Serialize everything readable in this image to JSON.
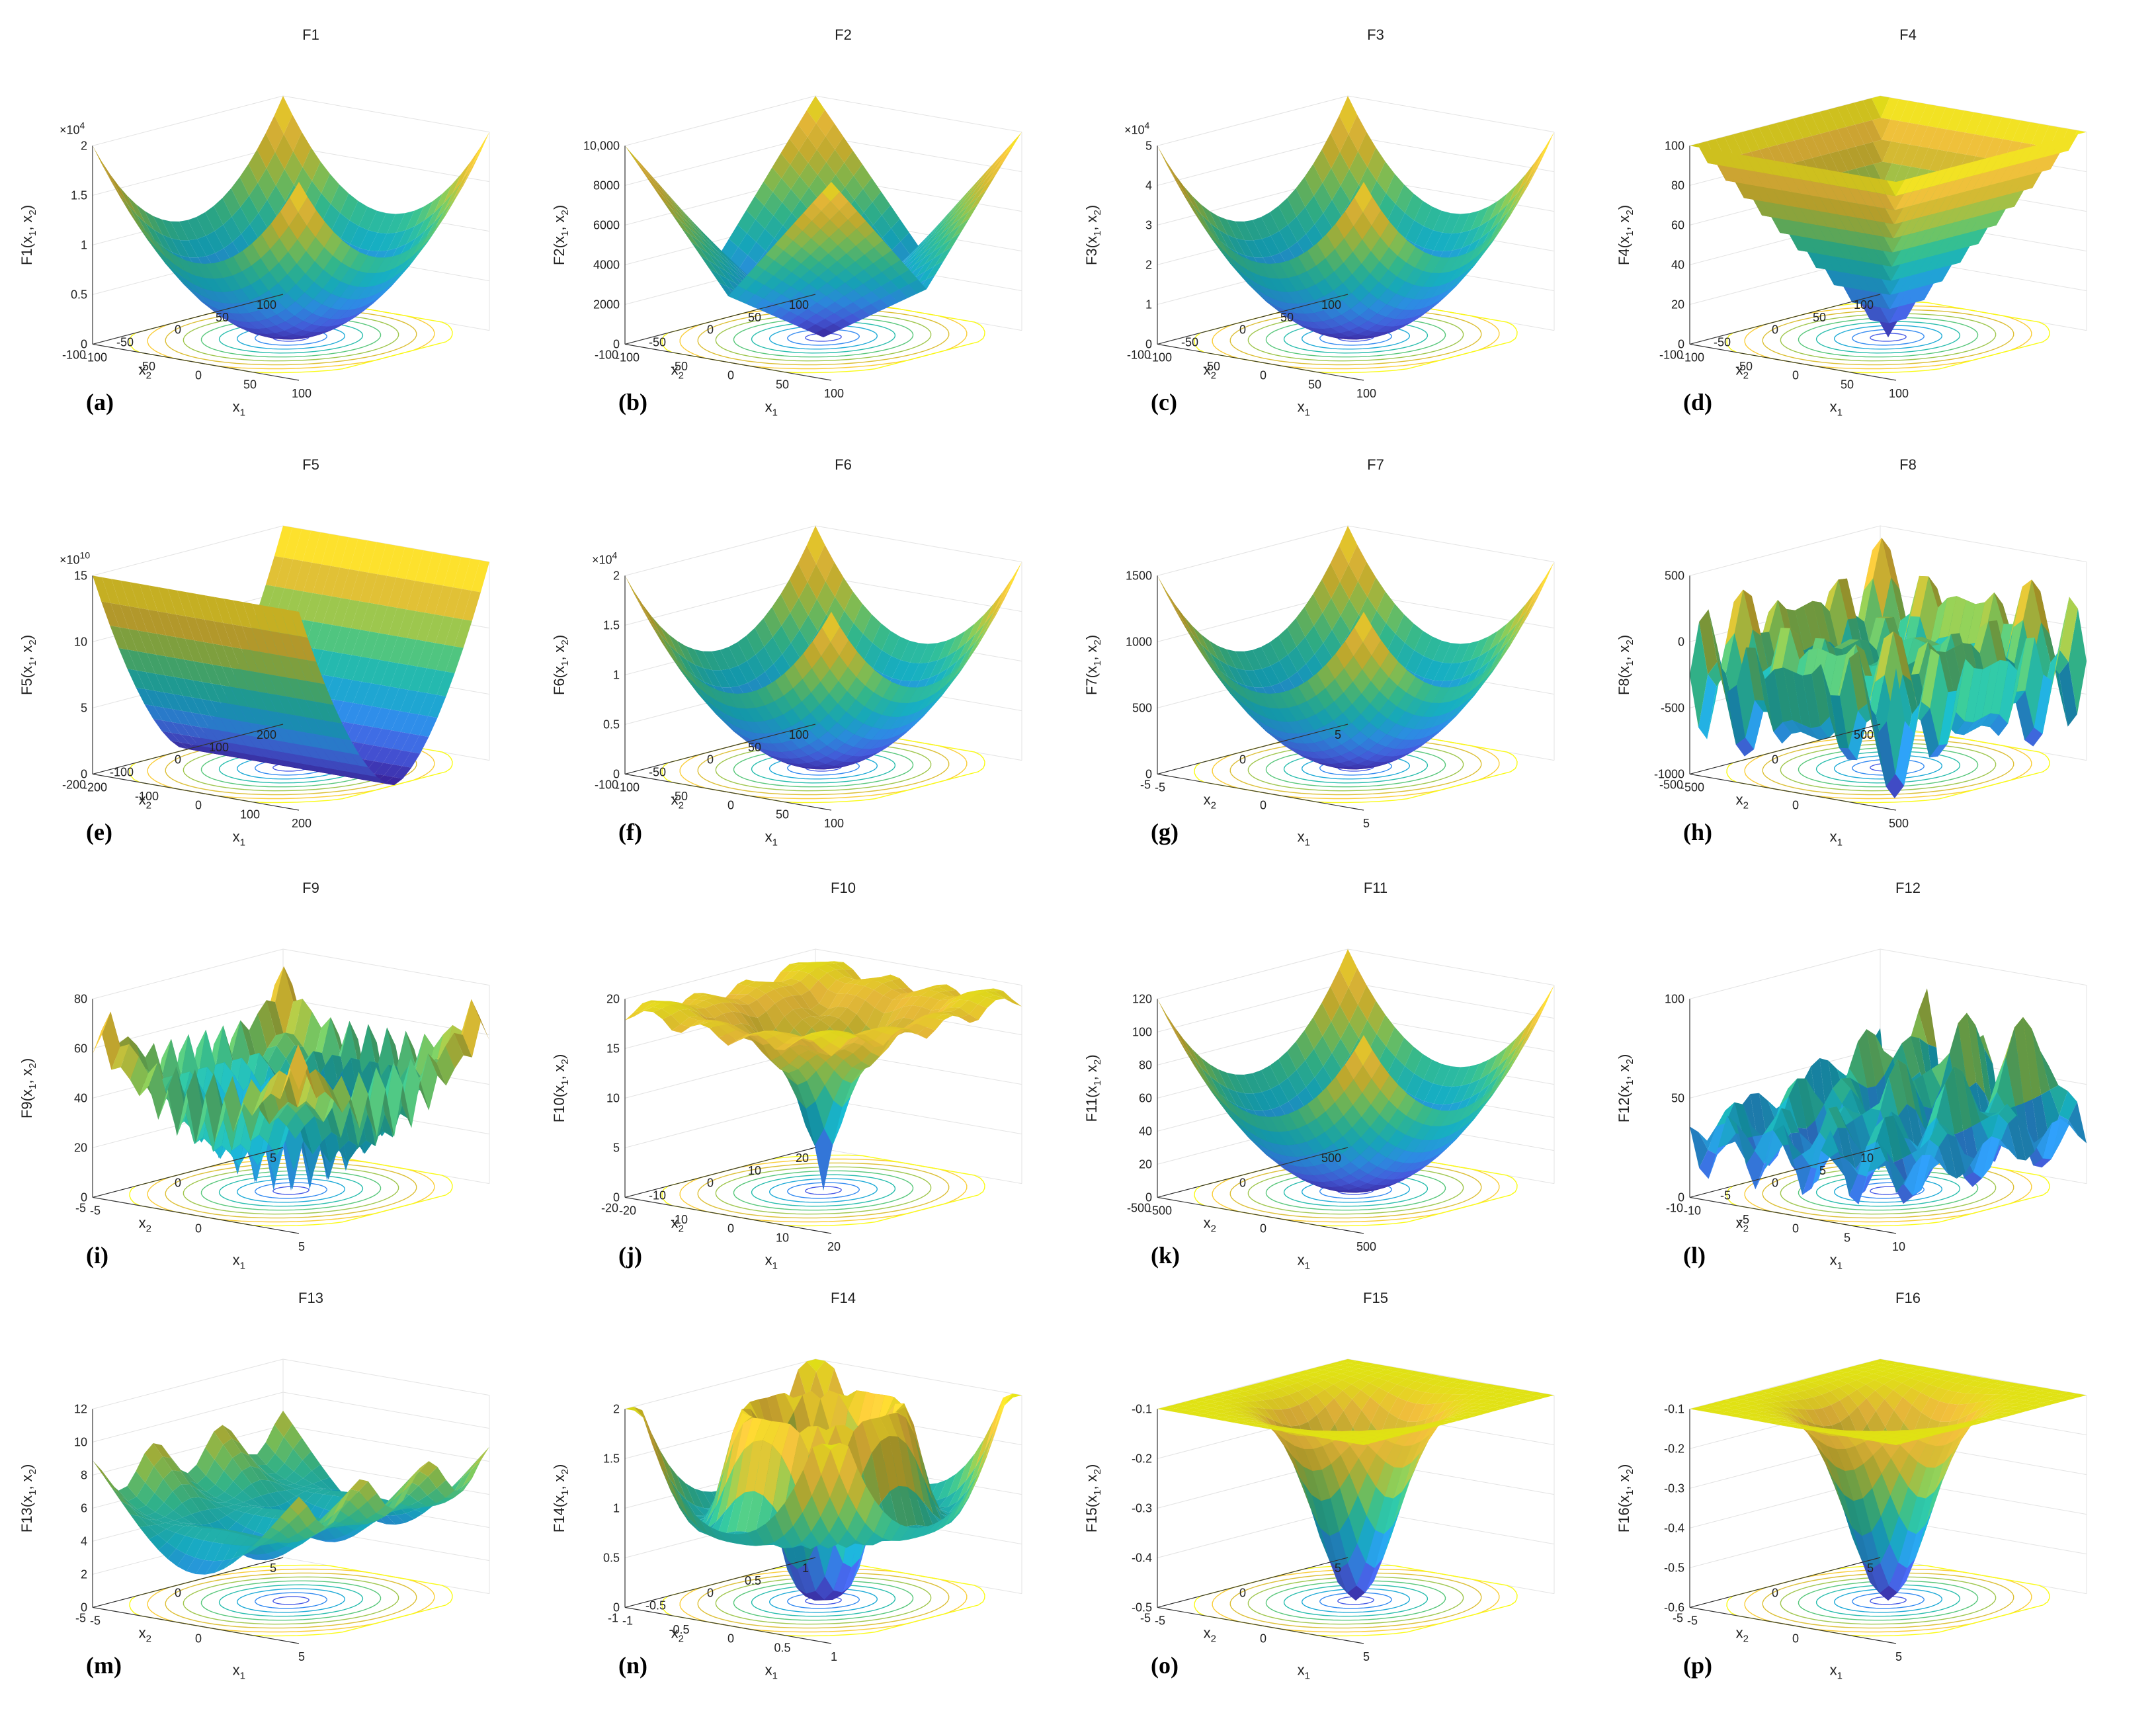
{
  "colormap": [
    "#3e26a8",
    "#4a63ee",
    "#2f97f2",
    "#18b5c9",
    "#36c496",
    "#85cb5a",
    "#d3bd32",
    "#fac73e",
    "#f9fb15"
  ],
  "chart_data": [
    {
      "id": "a",
      "label": "(a)",
      "title": "F1",
      "type": "surface",
      "shape": "bowl",
      "xlim": [
        -100,
        100
      ],
      "ylim": [
        -100,
        100
      ],
      "xticks": [
        "-100",
        "-50",
        "0",
        "50",
        "100"
      ],
      "yticks": [
        "-100",
        "-50",
        "0",
        "50",
        "100"
      ],
      "zticks": [
        "0",
        "0.5",
        "1",
        "1.5",
        "2"
      ],
      "zexp": "×10",
      "zexp_sup": "4",
      "zlabel": "F1(x",
      "zlabel_sub1": "1",
      "zlabel_mid": ", x",
      "zlabel_sub2": "2",
      "zlabel_end": ")",
      "xlabel": "x",
      "xlabel_sub": "1",
      "ylabel": "x",
      "ylabel_sub": "2"
    },
    {
      "id": "b",
      "label": "(b)",
      "title": "F2",
      "type": "surface",
      "shape": "abs",
      "xlim": [
        -100,
        100
      ],
      "ylim": [
        -100,
        100
      ],
      "xticks": [
        "-100",
        "-50",
        "0",
        "50",
        "100"
      ],
      "yticks": [
        "-100",
        "-50",
        "0",
        "50",
        "100"
      ],
      "zticks": [
        "0",
        "2000",
        "4000",
        "6000",
        "8000",
        "10,000"
      ],
      "zexp": "",
      "zexp_sup": "",
      "zlabel": "F2(x",
      "zlabel_sub1": "1",
      "zlabel_mid": ", x",
      "zlabel_sub2": "2",
      "zlabel_end": ")",
      "xlabel": "x",
      "xlabel_sub": "1",
      "ylabel": "x",
      "ylabel_sub": "2"
    },
    {
      "id": "c",
      "label": "(c)",
      "title": "F3",
      "type": "surface",
      "shape": "bowl",
      "xlim": [
        -100,
        100
      ],
      "ylim": [
        -100,
        100
      ],
      "xticks": [
        "-100",
        "-50",
        "0",
        "50",
        "100"
      ],
      "yticks": [
        "-100",
        "-50",
        "0",
        "50",
        "100"
      ],
      "zticks": [
        "0",
        "1",
        "2",
        "3",
        "4",
        "5"
      ],
      "zexp": "×10",
      "zexp_sup": "4",
      "zlabel": "F3(x",
      "zlabel_sub1": "1",
      "zlabel_mid": ", x",
      "zlabel_sub2": "2",
      "zlabel_end": ")",
      "xlabel": "x",
      "xlabel_sub": "1",
      "ylabel": "x",
      "ylabel_sub": "2"
    },
    {
      "id": "d",
      "label": "(d)",
      "title": "F4",
      "type": "surface",
      "shape": "inverted",
      "xlim": [
        -100,
        100
      ],
      "ylim": [
        -100,
        100
      ],
      "xticks": [
        "-100",
        "-50",
        "0",
        "50",
        "100"
      ],
      "yticks": [
        "-100",
        "-50",
        "0",
        "50",
        "100"
      ],
      "zticks": [
        "0",
        "20",
        "40",
        "60",
        "80",
        "100"
      ],
      "zexp": "",
      "zexp_sup": "",
      "zlabel": "F4(x",
      "zlabel_sub1": "1",
      "zlabel_mid": ", x",
      "zlabel_sub2": "2",
      "zlabel_end": ")",
      "xlabel": "x",
      "xlabel_sub": "1",
      "ylabel": "x",
      "ylabel_sub": "2"
    },
    {
      "id": "e",
      "label": "(e)",
      "title": "F5",
      "type": "surface",
      "shape": "valley",
      "xlim": [
        -200,
        200
      ],
      "ylim": [
        -200,
        200
      ],
      "xticks": [
        "-200",
        "-100",
        "0",
        "100",
        "200"
      ],
      "yticks": [
        "-200",
        "-100",
        "0",
        "100",
        "200"
      ],
      "zticks": [
        "0",
        "5",
        "10",
        "15"
      ],
      "zexp": "×10",
      "zexp_sup": "10",
      "zlabel": "F5(x",
      "zlabel_sub1": "1",
      "zlabel_mid": ", x",
      "zlabel_sub2": "2",
      "zlabel_end": ")",
      "xlabel": "x",
      "xlabel_sub": "1",
      "ylabel": "x",
      "ylabel_sub": "2"
    },
    {
      "id": "f",
      "label": "(f)",
      "title": "F6",
      "type": "surface",
      "shape": "bowl",
      "xlim": [
        -100,
        100
      ],
      "ylim": [
        -100,
        100
      ],
      "xticks": [
        "-100",
        "-50",
        "0",
        "50",
        "100"
      ],
      "yticks": [
        "-100",
        "-50",
        "0",
        "50",
        "100"
      ],
      "zticks": [
        "0",
        "0.5",
        "1",
        "1.5",
        "2"
      ],
      "zexp": "×10",
      "zexp_sup": "4",
      "zlabel": "F6(x",
      "zlabel_sub1": "1",
      "zlabel_mid": ", x",
      "zlabel_sub2": "2",
      "zlabel_end": ")",
      "xlabel": "x",
      "xlabel_sub": "1",
      "ylabel": "x",
      "ylabel_sub": "2"
    },
    {
      "id": "g",
      "label": "(g)",
      "title": "F7",
      "type": "surface",
      "shape": "bowl",
      "xlim": [
        -5,
        5
      ],
      "ylim": [
        -5,
        5
      ],
      "xticks": [
        "-5",
        "0",
        "5"
      ],
      "yticks": [
        "-5",
        "0",
        "5"
      ],
      "zticks": [
        "0",
        "500",
        "1000",
        "1500"
      ],
      "zexp": "",
      "zexp_sup": "",
      "zlabel": "F7(x",
      "zlabel_sub1": "1",
      "zlabel_mid": ", x",
      "zlabel_sub2": "2",
      "zlabel_end": ")",
      "xlabel": "x",
      "xlabel_sub": "1",
      "ylabel": "x",
      "ylabel_sub": "2"
    },
    {
      "id": "h",
      "label": "(h)",
      "title": "F8",
      "type": "surface",
      "shape": "schwefel",
      "xlim": [
        -500,
        500
      ],
      "ylim": [
        -500,
        500
      ],
      "xticks": [
        "-500",
        "0",
        "500"
      ],
      "yticks": [
        "-500",
        "0",
        "500"
      ],
      "zticks": [
        "-1000",
        "-500",
        "0",
        "500"
      ],
      "zexp": "",
      "zexp_sup": "",
      "zlabel": "F8(x",
      "zlabel_sub1": "1",
      "zlabel_mid": ", x",
      "zlabel_sub2": "2",
      "zlabel_end": ")",
      "xlabel": "x",
      "xlabel_sub": "1",
      "ylabel": "x",
      "ylabel_sub": "2"
    },
    {
      "id": "i",
      "label": "(i)",
      "title": "F9",
      "type": "surface",
      "shape": "rastrigin",
      "xlim": [
        -5,
        5
      ],
      "ylim": [
        -5,
        5
      ],
      "xticks": [
        "-5",
        "0",
        "5"
      ],
      "yticks": [
        "-5",
        "0",
        "5"
      ],
      "zticks": [
        "0",
        "20",
        "40",
        "60",
        "80"
      ],
      "zexp": "",
      "zexp_sup": "",
      "zlabel": "F9(x",
      "zlabel_sub1": "1",
      "zlabel_mid": ", x",
      "zlabel_sub2": "2",
      "zlabel_end": ")",
      "xlabel": "x",
      "xlabel_sub": "1",
      "ylabel": "x",
      "ylabel_sub": "2"
    },
    {
      "id": "j",
      "label": "(j)",
      "title": "F10",
      "type": "surface",
      "shape": "ackley",
      "xlim": [
        -20,
        20
      ],
      "ylim": [
        -20,
        20
      ],
      "xticks": [
        "-20",
        "-10",
        "0",
        "10",
        "20"
      ],
      "yticks": [
        "-20",
        "-10",
        "0",
        "10",
        "20"
      ],
      "zticks": [
        "0",
        "5",
        "10",
        "15",
        "20"
      ],
      "zexp": "",
      "zexp_sup": "",
      "zlabel": "F10(x",
      "zlabel_sub1": "1",
      "zlabel_mid": ", x",
      "zlabel_sub2": "2",
      "zlabel_end": ")",
      "xlabel": "x",
      "xlabel_sub": "1",
      "ylabel": "x",
      "ylabel_sub": "2"
    },
    {
      "id": "k",
      "label": "(k)",
      "title": "F11",
      "type": "surface",
      "shape": "bowl",
      "xlim": [
        -500,
        500
      ],
      "ylim": [
        -500,
        500
      ],
      "xticks": [
        "-500",
        "0",
        "500"
      ],
      "yticks": [
        "-500",
        "0",
        "500"
      ],
      "zticks": [
        "0",
        "20",
        "40",
        "60",
        "80",
        "100",
        "120"
      ],
      "zexp": "",
      "zexp_sup": "",
      "zlabel": "F11(x",
      "zlabel_sub1": "1",
      "zlabel_mid": ", x",
      "zlabel_sub2": "2",
      "zlabel_end": ")",
      "xlabel": "x",
      "xlabel_sub": "1",
      "ylabel": "x",
      "ylabel_sub": "2"
    },
    {
      "id": "l",
      "label": "(l)",
      "title": "F12",
      "type": "surface",
      "shape": "spiky",
      "xlim": [
        -10,
        10
      ],
      "ylim": [
        -10,
        10
      ],
      "xticks": [
        "-10",
        "-5",
        "0",
        "5",
        "10"
      ],
      "yticks": [
        "-10",
        "-5",
        "0",
        "5",
        "10"
      ],
      "zticks": [
        "0",
        "50",
        "100"
      ],
      "zexp": "",
      "zexp_sup": "",
      "zlabel": "F12(x",
      "zlabel_sub1": "1",
      "zlabel_mid": ", x",
      "zlabel_sub2": "2",
      "zlabel_end": ")",
      "xlabel": "x",
      "xlabel_sub": "1",
      "ylabel": "x",
      "ylabel_sub": "2"
    },
    {
      "id": "m",
      "label": "(m)",
      "title": "F13",
      "type": "surface",
      "shape": "trough",
      "xlim": [
        -5,
        5
      ],
      "ylim": [
        -5,
        5
      ],
      "xticks": [
        "-5",
        "0",
        "5"
      ],
      "yticks": [
        "-5",
        "0",
        "5"
      ],
      "zticks": [
        "0",
        "2",
        "4",
        "6",
        "8",
        "10",
        "12"
      ],
      "zexp": "",
      "zexp_sup": "",
      "zlabel": "F13(x",
      "zlabel_sub1": "1",
      "zlabel_mid": ", x",
      "zlabel_sub2": "2",
      "zlabel_end": ")",
      "xlabel": "x",
      "xlabel_sub": "1",
      "ylabel": "x",
      "ylabel_sub": "2"
    },
    {
      "id": "n",
      "label": "(n)",
      "title": "F14",
      "type": "surface",
      "shape": "ring",
      "xlim": [
        -1,
        1
      ],
      "ylim": [
        -1,
        1
      ],
      "xticks": [
        "-1",
        "-0.5",
        "0",
        "0.5",
        "1"
      ],
      "yticks": [
        "-1",
        "-0.5",
        "0",
        "0.5",
        "1"
      ],
      "zticks": [
        "0",
        "0.5",
        "1",
        "1.5",
        "2"
      ],
      "zexp": "",
      "zexp_sup": "",
      "zlabel": "F14(x",
      "zlabel_sub1": "1",
      "zlabel_mid": ", x",
      "zlabel_sub2": "2",
      "zlabel_end": ")",
      "xlabel": "x",
      "xlabel_sub": "1",
      "ylabel": "x",
      "ylabel_sub": "2"
    },
    {
      "id": "o",
      "label": "(o)",
      "title": "F15",
      "type": "surface",
      "shape": "well",
      "xlim": [
        -5,
        5
      ],
      "ylim": [
        -5,
        5
      ],
      "xticks": [
        "-5",
        "0",
        "5"
      ],
      "yticks": [
        "-5",
        "0",
        "5"
      ],
      "zticks": [
        "-0.5",
        "-0.4",
        "-0.3",
        "-0.2",
        "-0.1"
      ],
      "zexp": "",
      "zexp_sup": "",
      "zlabel": "F15(x",
      "zlabel_sub1": "1",
      "zlabel_mid": ", x",
      "zlabel_sub2": "2",
      "zlabel_end": ")",
      "xlabel": "x",
      "xlabel_sub": "1",
      "ylabel": "x",
      "ylabel_sub": "2"
    },
    {
      "id": "p",
      "label": "(p)",
      "title": "F16",
      "type": "surface",
      "shape": "well",
      "xlim": [
        -5,
        5
      ],
      "ylim": [
        -5,
        5
      ],
      "xticks": [
        "-5",
        "0",
        "5"
      ],
      "yticks": [
        "-5",
        "0",
        "5"
      ],
      "zticks": [
        "-0.6",
        "-0.5",
        "-0.4",
        "-0.3",
        "-0.2",
        "-0.1"
      ],
      "zexp": "",
      "zexp_sup": "",
      "zlabel": "F16(x",
      "zlabel_sub1": "1",
      "zlabel_mid": ", x",
      "zlabel_sub2": "2",
      "zlabel_end": ")",
      "xlabel": "x",
      "xlabel_sub": "1",
      "ylabel": "x",
      "ylabel_sub": "2"
    }
  ]
}
